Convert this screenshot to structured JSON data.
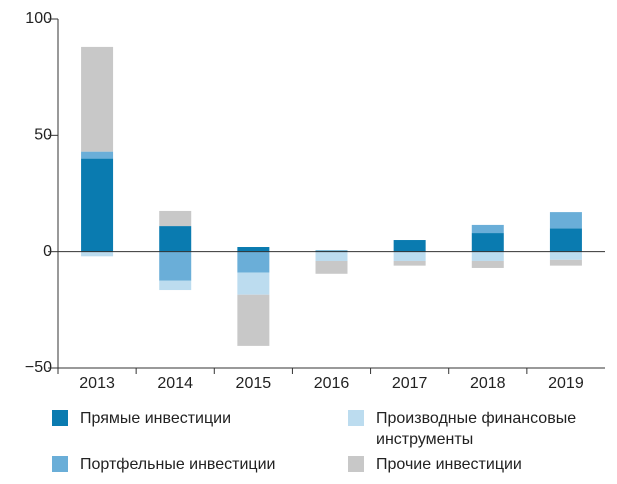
{
  "chart_data": {
    "type": "bar",
    "stacked": true,
    "categories": [
      "2013",
      "2014",
      "2015",
      "2016",
      "2017",
      "2018",
      "2019"
    ],
    "series": [
      {
        "name": "Прямые инвестиции",
        "color": "#0a7bb0",
        "values": [
          40,
          11,
          2,
          0.5,
          5,
          8,
          10
        ]
      },
      {
        "name": "Портфельные инвестиции",
        "color": "#6aaed8",
        "values": [
          3,
          -12.5,
          -9,
          0,
          0,
          3.5,
          7
        ]
      },
      {
        "name": "Производные финансовые инструменты",
        "color": "#bcdcef",
        "values": [
          -2,
          -4,
          -9.5,
          -4,
          -4,
          -4,
          -3.5
        ]
      },
      {
        "name": "Прочие инвестиции",
        "color": "#c8c8c8",
        "values": [
          45,
          6.5,
          -22,
          -5.5,
          -2,
          -3,
          -2.5
        ]
      }
    ],
    "ylim": [
      -50,
      100
    ],
    "yticks": [
      {
        "value": -50,
        "label": "−50"
      },
      0,
      50,
      100
    ]
  }
}
